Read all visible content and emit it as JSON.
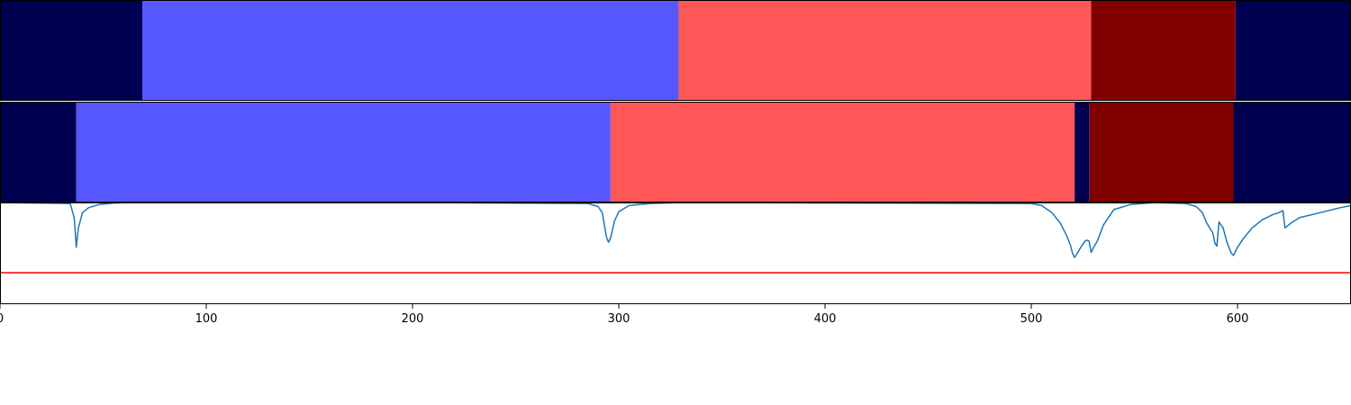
{
  "chart_data": [
    {
      "type": "bar",
      "subtype": "segment-track",
      "xlim": [
        0,
        655
      ],
      "segments": [
        {
          "start": 0,
          "end": 69,
          "color": "#000050"
        },
        {
          "start": 69,
          "end": 329,
          "color": "#5757ff"
        },
        {
          "start": 329,
          "end": 529,
          "color": "#ff5757"
        },
        {
          "start": 529,
          "end": 599,
          "color": "#800000"
        },
        {
          "start": 599,
          "end": 655,
          "color": "#000050"
        }
      ]
    },
    {
      "type": "bar",
      "subtype": "segment-track",
      "xlim": [
        0,
        655
      ],
      "segments": [
        {
          "start": 0,
          "end": 37,
          "color": "#000050"
        },
        {
          "start": 37,
          "end": 296,
          "color": "#5757ff"
        },
        {
          "start": 296,
          "end": 521,
          "color": "#ff5757"
        },
        {
          "start": 521,
          "end": 528,
          "color": "#000050"
        },
        {
          "start": 528,
          "end": 598,
          "color": "#800000"
        },
        {
          "start": 598,
          "end": 655,
          "color": "#000050"
        }
      ]
    },
    {
      "type": "line",
      "xlim": [
        0,
        655
      ],
      "ylim": [
        0,
        1
      ],
      "grid": false,
      "xticks": [
        0,
        100,
        200,
        300,
        400,
        500,
        600
      ],
      "xtick_labels": [
        "0",
        "100",
        "200",
        "300",
        "400",
        "500",
        "600"
      ],
      "threshold": {
        "y": 0.31,
        "color": "#ff0000"
      },
      "series": [
        {
          "color": "#1f77b4",
          "x": [
            0,
            34,
            36,
            37,
            38,
            40,
            43,
            48,
            55,
            62,
            100,
            200,
            285,
            290,
            292,
            293,
            294,
            295,
            296,
            298,
            300,
            305,
            315,
            330,
            500,
            505,
            510,
            514,
            517,
            519,
            520,
            521,
            522,
            524,
            526,
            527,
            528,
            529,
            530,
            532,
            535,
            540,
            548,
            560,
            575,
            580,
            583,
            585,
            588,
            589,
            590,
            591,
            593,
            595,
            597,
            598,
            600,
            603,
            607,
            612,
            617,
            620,
            622,
            623,
            626,
            630,
            640,
            650,
            655
          ],
          "y": [
            1.0,
            0.99,
            0.85,
            0.56,
            0.75,
            0.9,
            0.95,
            0.98,
            0.995,
            1.0,
            1.0,
            1.0,
            0.99,
            0.96,
            0.9,
            0.78,
            0.66,
            0.61,
            0.65,
            0.82,
            0.91,
            0.97,
            0.99,
            1.0,
            0.99,
            0.97,
            0.9,
            0.8,
            0.68,
            0.58,
            0.5,
            0.46,
            0.49,
            0.56,
            0.62,
            0.63,
            0.62,
            0.51,
            0.55,
            0.62,
            0.78,
            0.93,
            0.98,
            1.0,
            0.99,
            0.96,
            0.9,
            0.8,
            0.7,
            0.6,
            0.57,
            0.81,
            0.75,
            0.6,
            0.5,
            0.48,
            0.56,
            0.65,
            0.75,
            0.83,
            0.88,
            0.9,
            0.92,
            0.75,
            0.8,
            0.85,
            0.9,
            0.95,
            0.97
          ]
        }
      ]
    }
  ]
}
